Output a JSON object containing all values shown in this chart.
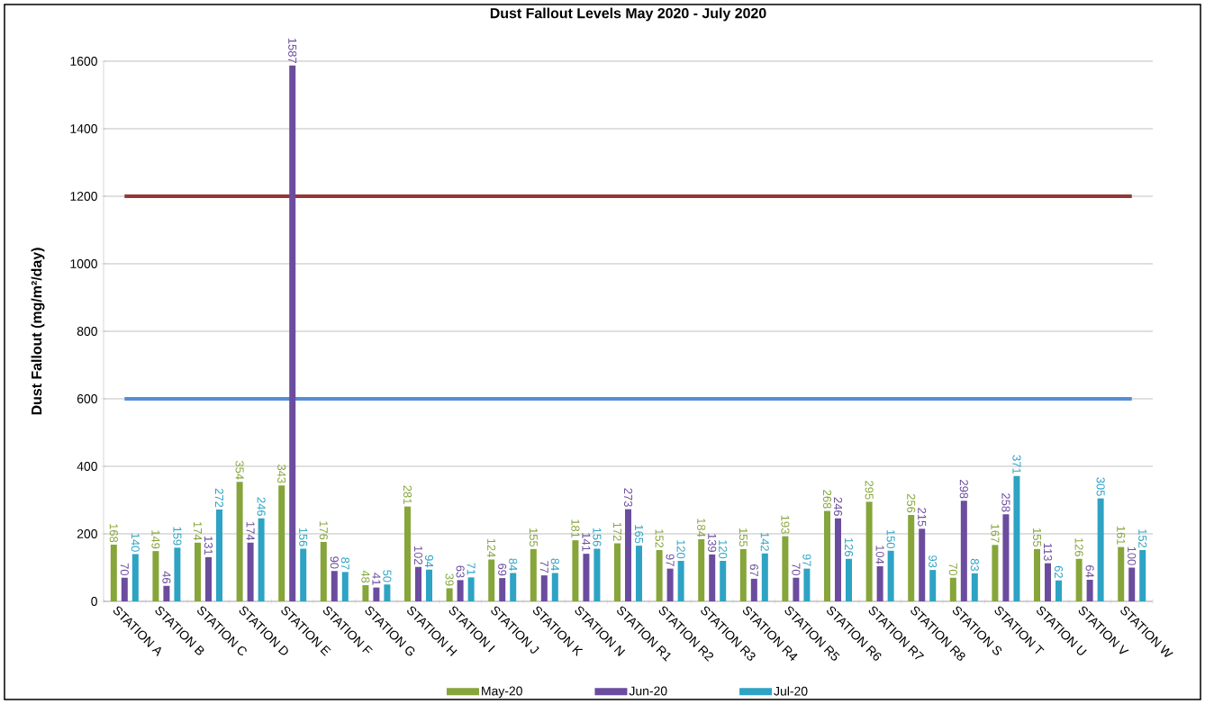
{
  "chart_data": {
    "type": "bar",
    "title": "Dust Fallout Levels May 2020 - July 2020",
    "ylabel": "Dust Fallout (mg/m²/day)",
    "categories": [
      "STATION A",
      "STATION B",
      "STATION C",
      "STATION D",
      "STATION E",
      "STATION F",
      "STATION G",
      "STATION H",
      "STATION I",
      "STATION J",
      "STATION K",
      "STATION N",
      "STATION R1",
      "STATION R2",
      "STATION R3",
      "STATION R4",
      "STATION R5",
      "STATION R6",
      "STATION R7",
      "STATION R8",
      "STATION S",
      "STATION T",
      "STATION U",
      "STATION V",
      "STATION W"
    ],
    "series": [
      {
        "name": "May-20",
        "color": "#86a53a",
        "values": [
          168,
          149,
          174,
          354,
          343,
          176,
          48,
          281,
          39,
          124,
          155,
          181,
          172,
          152,
          184,
          155,
          193,
          268,
          295,
          256,
          70,
          167,
          155,
          126,
          161
        ]
      },
      {
        "name": "Jun-20",
        "color": "#6b4c9e",
        "values": [
          70,
          46,
          131,
          174,
          1587,
          90,
          41,
          102,
          63,
          69,
          77,
          141,
          273,
          97,
          139,
          67,
          70,
          246,
          104,
          215,
          298,
          258,
          113,
          64,
          100
        ]
      },
      {
        "name": "Jul-20",
        "color": "#2ea3c4",
        "values": [
          140,
          159,
          272,
          246,
          156,
          87,
          50,
          94,
          71,
          84,
          84,
          156,
          165,
          120,
          120,
          142,
          97,
          126,
          150,
          93,
          83,
          371,
          62,
          305,
          152
        ]
      }
    ],
    "ylim": [
      0,
      1600
    ],
    "yticks": [
      0,
      200,
      400,
      600,
      800,
      1000,
      1200,
      1400,
      1600
    ],
    "grid": "y",
    "legend": "bottom",
    "data_labels": true,
    "ref_lines": [
      {
        "axis": "y",
        "value": 1200,
        "color": "#953735"
      },
      {
        "axis": "y",
        "value": 600,
        "color": "#558ed5"
      }
    ]
  }
}
